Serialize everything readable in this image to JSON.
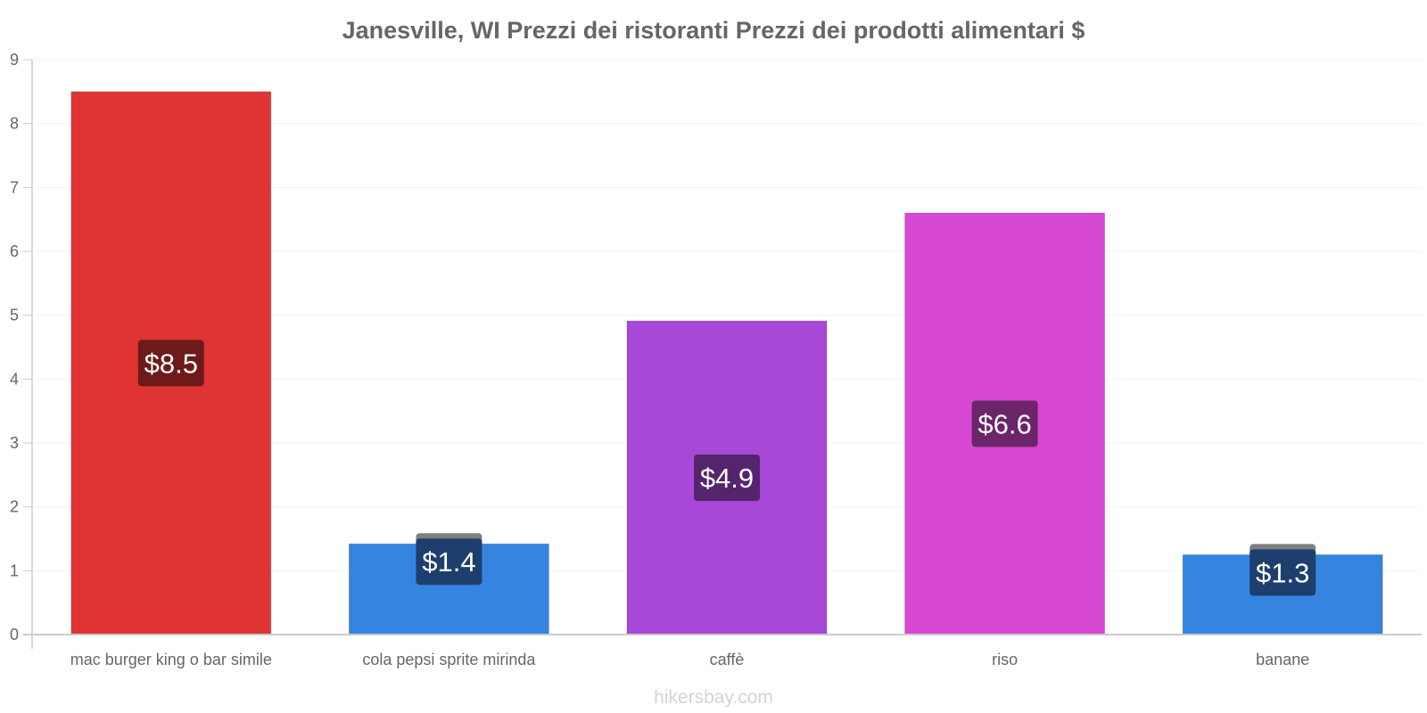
{
  "chart_data": {
    "type": "bar",
    "title": "Janesville, WI Prezzi dei ristoranti Prezzi dei prodotti alimentari $",
    "categories": [
      "mac burger king o bar simile",
      "cola pepsi sprite mirinda",
      "caffè",
      "riso",
      "banane"
    ],
    "values": [
      8.5,
      1.42,
      4.91,
      6.6,
      1.25
    ],
    "value_labels": [
      "$8.5",
      "$1.4",
      "$4.9",
      "$6.6",
      "$1.3"
    ],
    "bar_colors": [
      "#e03434",
      "#3584df",
      "#a748d8",
      "#d748d3",
      "#3584df"
    ],
    "label_bg_colors": [
      "#6e1a1a",
      "#1e3f6e",
      "#54246d",
      "#6c246a",
      "#1e3f6e"
    ],
    "label_tab_color": "#808080",
    "yticks": [
      "0",
      "1",
      "2",
      "3",
      "4",
      "5",
      "6",
      "7",
      "8",
      "9"
    ],
    "ylim": [
      0,
      9
    ],
    "xlabel": "",
    "ylabel": "",
    "grid": true
  },
  "credit": "hikersbay.com"
}
